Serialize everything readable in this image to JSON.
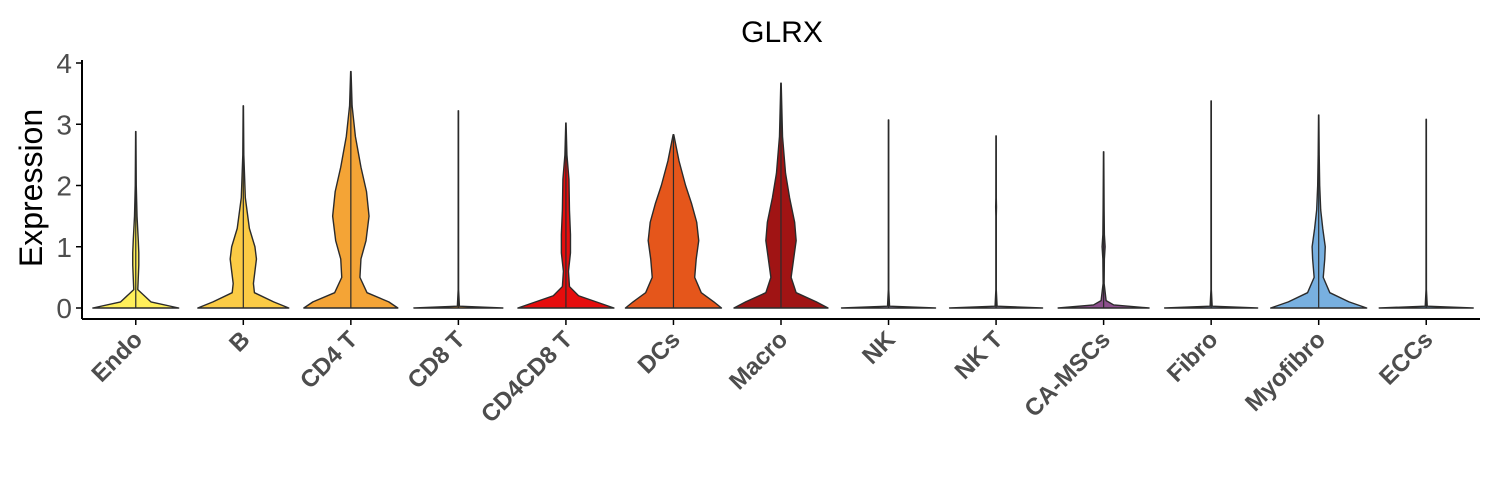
{
  "chart_data": {
    "type": "violin",
    "title": "GLRX",
    "xlabel": "",
    "ylabel": "Expression",
    "ylim": [
      -0.2,
      4.05
    ],
    "yticks": [
      0,
      1,
      2,
      3,
      4
    ],
    "grid": false,
    "legend": "none",
    "categories": [
      "Endo",
      "B",
      "CD4 T",
      "CD8 T",
      "CD4CD8 T",
      "DCs",
      "Macro",
      "NK",
      "NK T",
      "CA-MSCs",
      "Fibro",
      "Myofibro",
      "ECCs"
    ],
    "series": [
      {
        "category": "Endo",
        "color": "#ffef5a",
        "max": 2.88,
        "profile": [
          [
            0,
            0.85
          ],
          [
            0.1,
            0.3
          ],
          [
            0.3,
            0.04
          ],
          [
            0.5,
            0.05
          ],
          [
            0.7,
            0.06
          ],
          [
            0.9,
            0.06
          ],
          [
            1.1,
            0.05
          ],
          [
            1.5,
            0.025
          ],
          [
            2.0,
            0.01
          ],
          [
            2.88,
            0.003
          ]
        ]
      },
      {
        "category": "B",
        "color": "#fbcb45",
        "max": 3.3,
        "profile": [
          [
            0,
            0.9
          ],
          [
            0.1,
            0.6
          ],
          [
            0.25,
            0.22
          ],
          [
            0.4,
            0.2
          ],
          [
            0.6,
            0.23
          ],
          [
            0.8,
            0.26
          ],
          [
            1.0,
            0.23
          ],
          [
            1.3,
            0.12
          ],
          [
            1.8,
            0.04
          ],
          [
            2.5,
            0.01
          ],
          [
            3.3,
            0.003
          ]
        ]
      },
      {
        "category": "CD4 T",
        "color": "#f4a436",
        "max": 3.86,
        "profile": [
          [
            0,
            0.93
          ],
          [
            0.1,
            0.75
          ],
          [
            0.25,
            0.32
          ],
          [
            0.5,
            0.18
          ],
          [
            0.8,
            0.2
          ],
          [
            1.1,
            0.3
          ],
          [
            1.5,
            0.36
          ],
          [
            1.9,
            0.31
          ],
          [
            2.3,
            0.2
          ],
          [
            2.8,
            0.09
          ],
          [
            3.3,
            0.025
          ],
          [
            3.86,
            0.004
          ]
        ]
      },
      {
        "category": "CD8 T",
        "color": "#f4a436",
        "max": 3.22,
        "profile": [
          [
            0,
            0.88
          ],
          [
            0.03,
            0.02
          ],
          [
            0.3,
            0.004
          ],
          [
            3.22,
            0.003
          ]
        ]
      },
      {
        "category": "CD4CD8 T",
        "color": "#e60d0d",
        "max": 3.02,
        "profile": [
          [
            0,
            0.95
          ],
          [
            0.1,
            0.6
          ],
          [
            0.2,
            0.25
          ],
          [
            0.35,
            0.07
          ],
          [
            0.6,
            0.05
          ],
          [
            0.9,
            0.09
          ],
          [
            1.2,
            0.09
          ],
          [
            1.6,
            0.07
          ],
          [
            2.1,
            0.06
          ],
          [
            2.5,
            0.02
          ],
          [
            3.02,
            0.003
          ]
        ]
      },
      {
        "category": "DCs",
        "color": "#e5561b",
        "max": 2.83,
        "profile": [
          [
            0,
            0.95
          ],
          [
            0.1,
            0.8
          ],
          [
            0.25,
            0.55
          ],
          [
            0.5,
            0.42
          ],
          [
            0.8,
            0.45
          ],
          [
            1.1,
            0.5
          ],
          [
            1.4,
            0.46
          ],
          [
            1.7,
            0.36
          ],
          [
            2.0,
            0.24
          ],
          [
            2.4,
            0.11
          ],
          [
            2.83,
            0.006
          ]
        ]
      },
      {
        "category": "Macro",
        "color": "#a01414",
        "max": 3.67,
        "profile": [
          [
            0,
            0.93
          ],
          [
            0.1,
            0.7
          ],
          [
            0.25,
            0.3
          ],
          [
            0.5,
            0.2
          ],
          [
            0.8,
            0.25
          ],
          [
            1.1,
            0.3
          ],
          [
            1.4,
            0.27
          ],
          [
            1.8,
            0.17
          ],
          [
            2.2,
            0.09
          ],
          [
            2.8,
            0.03
          ],
          [
            3.67,
            0.004
          ]
        ]
      },
      {
        "category": "NK",
        "color": "#b2a9d1",
        "max": 3.07,
        "profile": [
          [
            0,
            0.93
          ],
          [
            0.03,
            0.02
          ],
          [
            0.3,
            0.004
          ],
          [
            3.07,
            0.003
          ]
        ]
      },
      {
        "category": "NK T",
        "color": "#b2a9d1",
        "max": 2.81,
        "profile": [
          [
            0,
            0.92
          ],
          [
            0.03,
            0.02
          ],
          [
            0.3,
            0.004
          ],
          [
            1.5,
            0.004
          ],
          [
            1.65,
            0.008
          ],
          [
            1.8,
            0.004
          ],
          [
            2.81,
            0.003
          ]
        ]
      },
      {
        "category": "CA-MSCs",
        "color": "#8c4f8c",
        "max": 2.55,
        "profile": [
          [
            0,
            0.9
          ],
          [
            0.05,
            0.2
          ],
          [
            0.12,
            0.05
          ],
          [
            0.4,
            0.01
          ],
          [
            0.8,
            0.015
          ],
          [
            1.0,
            0.03
          ],
          [
            1.2,
            0.015
          ],
          [
            1.6,
            0.01
          ],
          [
            2.55,
            0.003
          ]
        ]
      },
      {
        "category": "Fibro",
        "color": "#8da0cb",
        "max": 3.38,
        "profile": [
          [
            0,
            0.92
          ],
          [
            0.03,
            0.02
          ],
          [
            0.3,
            0.004
          ],
          [
            3.38,
            0.003
          ]
        ]
      },
      {
        "category": "Myofibro",
        "color": "#78b0e0",
        "max": 3.15,
        "profile": [
          [
            0,
            0.95
          ],
          [
            0.1,
            0.6
          ],
          [
            0.25,
            0.22
          ],
          [
            0.5,
            0.09
          ],
          [
            0.8,
            0.12
          ],
          [
            1.0,
            0.13
          ],
          [
            1.3,
            0.08
          ],
          [
            1.6,
            0.04
          ],
          [
            2.0,
            0.02
          ],
          [
            2.5,
            0.01
          ],
          [
            3.15,
            0.003
          ]
        ]
      },
      {
        "category": "ECCs",
        "color": "#78b0e0",
        "max": 3.08,
        "profile": [
          [
            0,
            0.93
          ],
          [
            0.03,
            0.02
          ],
          [
            0.3,
            0.004
          ],
          [
            3.08,
            0.003
          ]
        ]
      }
    ]
  }
}
